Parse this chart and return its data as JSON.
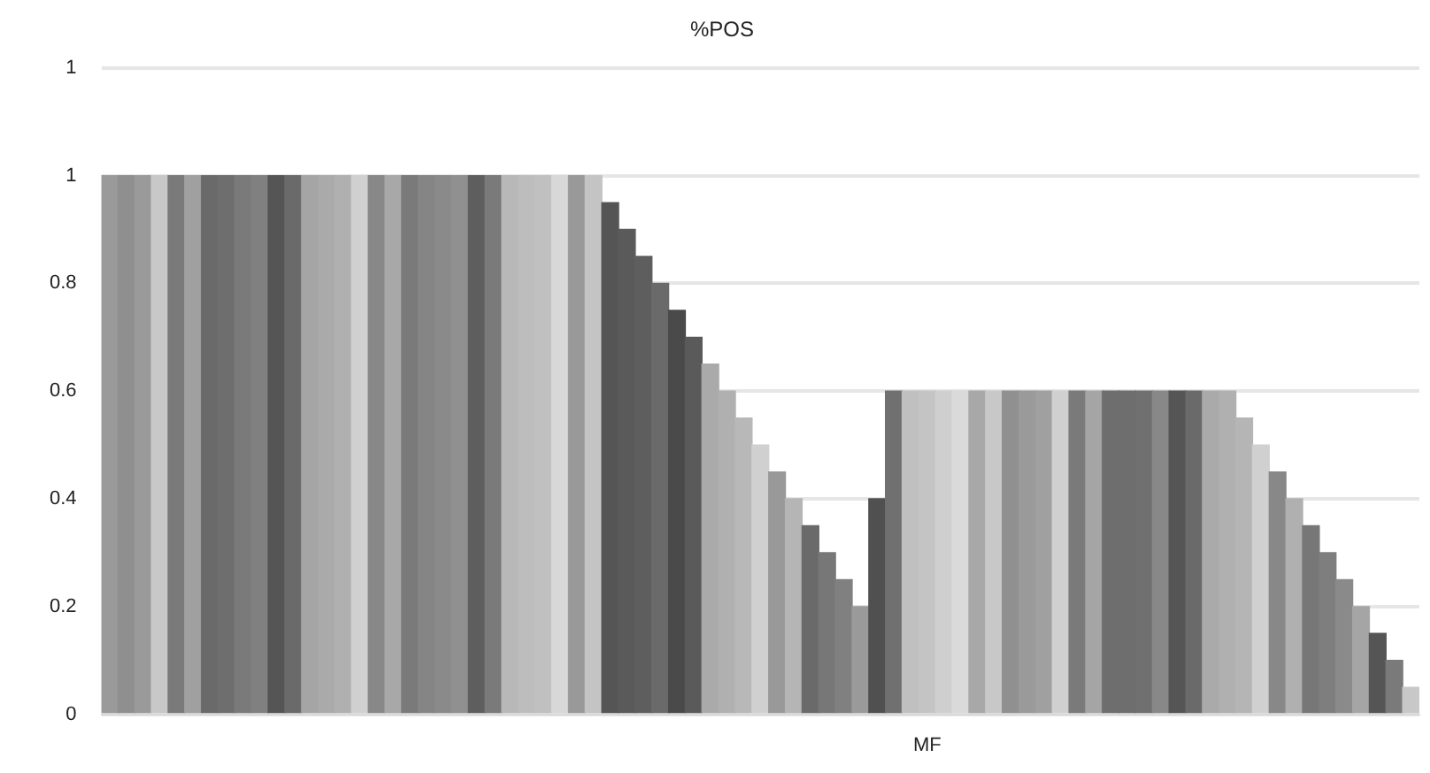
{
  "chart_data": {
    "type": "bar",
    "title": "%POS",
    "categories": [
      null,
      null,
      null,
      null,
      null,
      null,
      null,
      null,
      null,
      null,
      null,
      null,
      null,
      null,
      null,
      null,
      null,
      null,
      null,
      null,
      null,
      null,
      null,
      null,
      null,
      null,
      null,
      null,
      null,
      null,
      null,
      null,
      null,
      null,
      null,
      null,
      null,
      null,
      null,
      null,
      null,
      null,
      null,
      null,
      null,
      null,
      null,
      null,
      null,
      "MF",
      null,
      null,
      null,
      null,
      null,
      null,
      null,
      null,
      null,
      null,
      null,
      null,
      null,
      null,
      null,
      null,
      null,
      null,
      null,
      null,
      null,
      null,
      null,
      null,
      null,
      null,
      null,
      null,
      null
    ],
    "values": [
      1,
      1,
      1,
      1,
      1,
      1,
      1,
      1,
      1,
      1,
      1,
      1,
      1,
      1,
      1,
      1,
      1,
      1,
      1,
      1,
      1,
      1,
      1,
      1,
      1,
      1,
      1,
      1,
      1,
      1,
      0.95,
      0.9,
      0.85,
      0.8,
      0.75,
      0.7,
      0.65,
      0.6,
      0.55,
      0.5,
      0.45,
      0.4,
      0.35,
      0.3,
      0.25,
      0.2,
      0.4,
      0.6,
      0.6,
      0.6,
      0.6,
      0.6,
      0.6,
      0.6,
      0.6,
      0.6,
      0.6,
      0.6,
      0.6,
      0.6,
      0.6,
      0.6,
      0.6,
      0.6,
      0.6,
      0.6,
      0.6,
      0.6,
      0.55,
      0.5,
      0.45,
      0.4,
      0.35,
      0.3,
      0.25,
      0.2,
      0.15,
      0.1,
      0.05
    ],
    "colors": [
      "#9a9a9a",
      "#8f8f8f",
      "#9a9a9a",
      "#c8c8c8",
      "#7a7a7a",
      "#a0a0a0",
      "#6a6a6a",
      "#6e6e6e",
      "#7a7a7a",
      "#808080",
      "#555555",
      "#6a6a6a",
      "#a5a5a5",
      "#aaaaaa",
      "#b0b0b0",
      "#d0d0d0",
      "#888888",
      "#a8a8a8",
      "#7a7a7a",
      "#858585",
      "#8a8a8a",
      "#909090",
      "#5e5e5e",
      "#7a7a7a",
      "#b8b8b8",
      "#bdbdbd",
      "#c0c0c0",
      "#d8d8d8",
      "#999999",
      "#c4c4c4",
      "#555555",
      "#5a5a5a",
      "#5e5e5e",
      "#6a6a6a",
      "#4a4a4a",
      "#5a5a5a",
      "#aaaaaa",
      "#b0b0b0",
      "#b8b8b8",
      "#d0d0d0",
      "#999999",
      "#b5b5b5",
      "#6a6a6a",
      "#777777",
      "#808080",
      "#9a9a9a",
      "#505050",
      "#707070",
      "#c0c0c0",
      "#c4c4c4",
      "#cfcfcf",
      "#dadada",
      "#a8a8a8",
      "#c8c8c8",
      "#909090",
      "#9a9a9a",
      "#a0a0a0",
      "#d0d0d0",
      "#7a7a7a",
      "#a5a5a5",
      "#6e6e6e",
      "#6e6e6e",
      "#707070",
      "#888888",
      "#555555",
      "#6a6a6a",
      "#aaaaaa",
      "#b0b0b0",
      "#b5b5b5",
      "#d0d0d0",
      "#888888",
      "#b0b0b0",
      "#777777",
      "#7e7e7e",
      "#8a8a8a",
      "#a5a5a5",
      "#555555",
      "#7a7a7a",
      "#c8c8c8"
    ],
    "ylim": [
      0,
      1.2
    ],
    "yticks": [
      0,
      0.2,
      0.4,
      0.6,
      0.8,
      1,
      {
        "value": 1.2,
        "label": "1"
      }
    ],
    "grid": "y",
    "legend": false
  }
}
